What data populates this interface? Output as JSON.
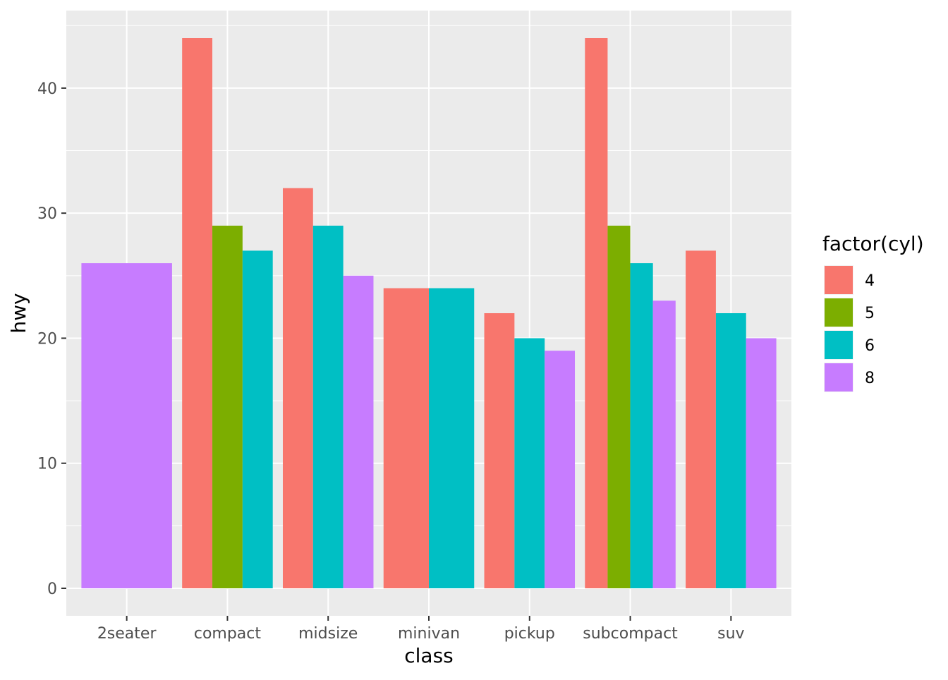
{
  "chart_data": {
    "type": "bar",
    "position": "dodge",
    "xlabel": "class",
    "ylabel": "hwy",
    "ylim": [
      -2.2,
      46.2
    ],
    "yticks": [
      0,
      10,
      20,
      30,
      40
    ],
    "categories": [
      "2seater",
      "compact",
      "midsize",
      "minivan",
      "pickup",
      "subcompact",
      "suv"
    ],
    "legend": {
      "title": "factor(cyl)",
      "placement": "right",
      "entries": [
        {
          "level": "4",
          "label": "4",
          "color": "#F8766D"
        },
        {
          "level": "5",
          "label": "5",
          "color": "#7CAE00"
        },
        {
          "level": "6",
          "label": "6",
          "color": "#00BFC4"
        },
        {
          "level": "8",
          "label": "8",
          "color": "#C77CFF"
        }
      ]
    },
    "groups": [
      {
        "category": "2seater",
        "bars": [
          {
            "cyl": "8",
            "value": 26
          }
        ]
      },
      {
        "category": "compact",
        "bars": [
          {
            "cyl": "4",
            "value": 44
          },
          {
            "cyl": "5",
            "value": 29
          },
          {
            "cyl": "6",
            "value": 27
          }
        ]
      },
      {
        "category": "midsize",
        "bars": [
          {
            "cyl": "4",
            "value": 32
          },
          {
            "cyl": "6",
            "value": 29
          },
          {
            "cyl": "8",
            "value": 25
          }
        ]
      },
      {
        "category": "minivan",
        "bars": [
          {
            "cyl": "4",
            "value": 24
          },
          {
            "cyl": "6",
            "value": 24
          }
        ]
      },
      {
        "category": "pickup",
        "bars": [
          {
            "cyl": "4",
            "value": 22
          },
          {
            "cyl": "6",
            "value": 20
          },
          {
            "cyl": "8",
            "value": 19
          }
        ]
      },
      {
        "category": "subcompact",
        "bars": [
          {
            "cyl": "4",
            "value": 44
          },
          {
            "cyl": "5",
            "value": 29
          },
          {
            "cyl": "6",
            "value": 26
          },
          {
            "cyl": "8",
            "value": 23
          }
        ]
      },
      {
        "category": "suv",
        "bars": [
          {
            "cyl": "4",
            "value": 27
          },
          {
            "cyl": "6",
            "value": 22
          },
          {
            "cyl": "8",
            "value": 20
          }
        ]
      }
    ],
    "grid": true,
    "panel_background": "#EBEBEB",
    "grid_color": "#FFFFFF"
  }
}
